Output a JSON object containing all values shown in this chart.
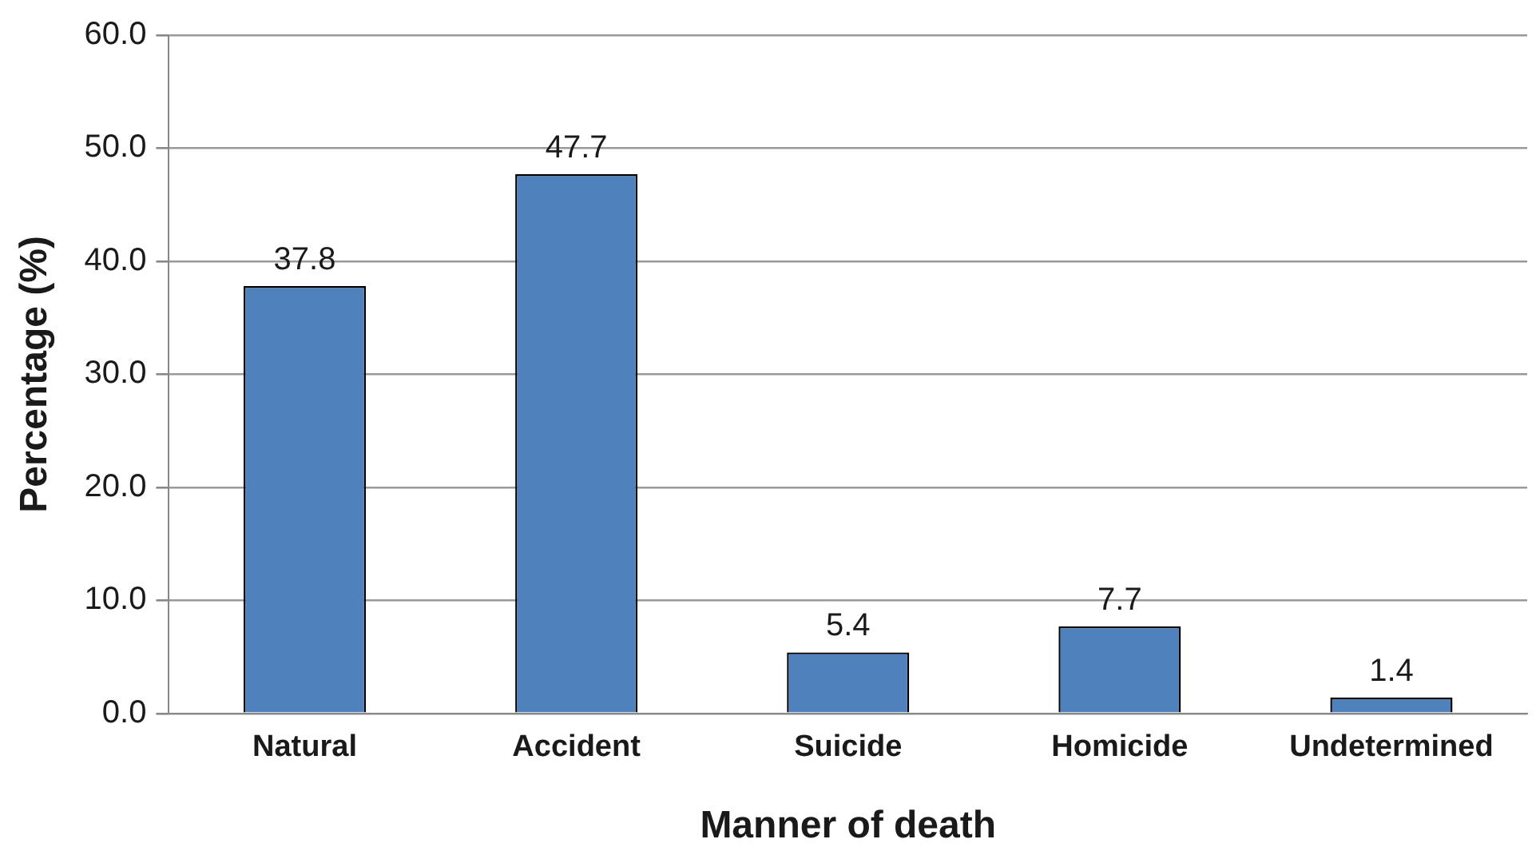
{
  "chart_data": {
    "type": "bar",
    "xlabel": "Manner of death",
    "ylabel": "Percentage (%)",
    "categories": [
      "Natural",
      "Accident",
      "Suicide",
      "Homicide",
      "Undetermined"
    ],
    "values": [
      37.8,
      47.7,
      5.4,
      7.7,
      1.4
    ],
    "color": "#4f81bd",
    "ylim": [
      0,
      60
    ],
    "yticks": [
      {
        "value": 0,
        "label": "0.0"
      },
      {
        "value": 10,
        "label": "10.0"
      },
      {
        "value": 20,
        "label": "20.0"
      },
      {
        "value": 30,
        "label": "30.0"
      },
      {
        "value": 40,
        "label": "40.0"
      },
      {
        "value": 50,
        "label": "50.0"
      },
      {
        "value": 60,
        "label": "60.0"
      }
    ],
    "grid": "y",
    "legend": false,
    "data_labels": true
  }
}
